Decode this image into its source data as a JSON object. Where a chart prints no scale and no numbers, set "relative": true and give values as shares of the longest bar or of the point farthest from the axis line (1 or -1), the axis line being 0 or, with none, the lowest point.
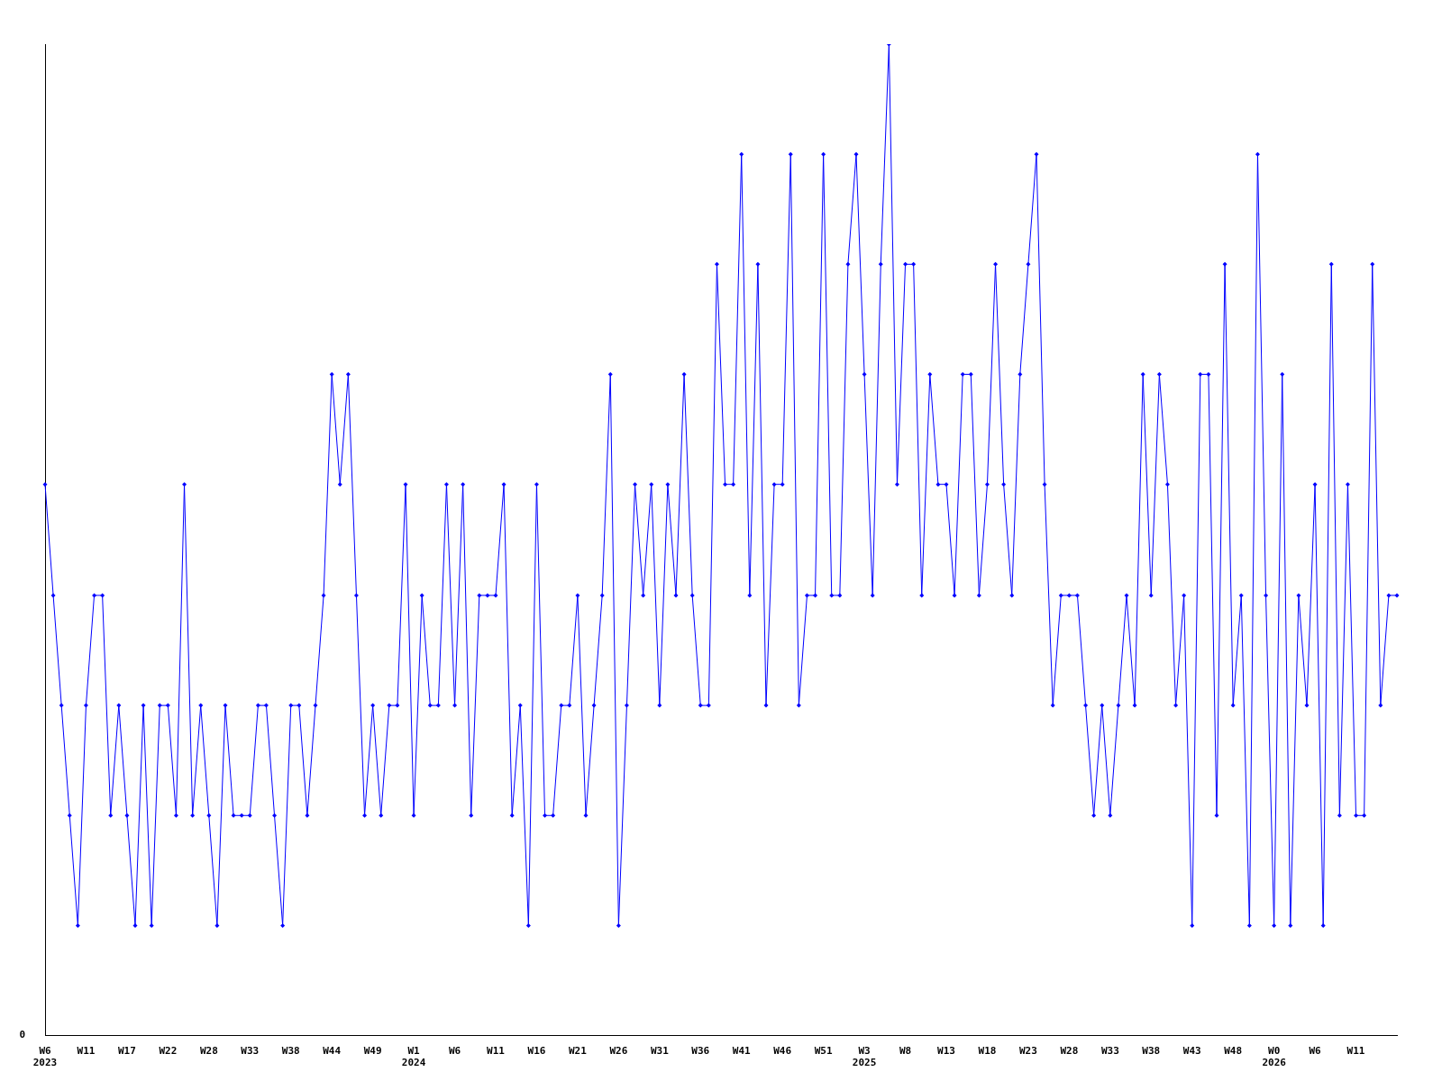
{
  "chart_data": {
    "type": "line",
    "relative": true,
    "grid": false,
    "legend": false,
    "marker": "diamond",
    "line_style": "solid",
    "annotations": [
      "0"
    ],
    "categories": [
      "W6\n2023",
      null,
      null,
      null,
      null,
      "W11",
      null,
      null,
      null,
      null,
      "W17",
      null,
      null,
      null,
      null,
      "W22",
      null,
      null,
      null,
      null,
      "W28",
      null,
      null,
      null,
      null,
      "W33",
      null,
      null,
      null,
      null,
      "W38",
      null,
      null,
      null,
      null,
      "W44",
      null,
      null,
      null,
      null,
      "W49",
      null,
      null,
      null,
      null,
      "W1\n2024",
      null,
      null,
      null,
      null,
      "W6",
      null,
      null,
      null,
      null,
      "W11",
      null,
      null,
      null,
      null,
      "W16",
      null,
      null,
      null,
      null,
      "W21",
      null,
      null,
      null,
      null,
      "W26",
      null,
      null,
      null,
      null,
      "W31",
      null,
      null,
      null,
      null,
      "W36",
      null,
      null,
      null,
      null,
      "W41",
      null,
      null,
      null,
      null,
      "W46",
      null,
      null,
      null,
      null,
      "W51",
      null,
      null,
      null,
      null,
      "W3\n2025",
      null,
      null,
      null,
      null,
      "W8",
      null,
      null,
      null,
      null,
      "W13",
      null,
      null,
      null,
      null,
      "W18",
      null,
      null,
      null,
      null,
      "W23",
      null,
      null,
      null,
      null,
      "W28",
      null,
      null,
      null,
      null,
      "W33",
      null,
      null,
      null,
      null,
      "W38",
      null,
      null,
      null,
      null,
      "W43",
      null,
      null,
      null,
      null,
      "W48",
      null,
      null,
      null,
      null,
      "W0\n2026",
      null,
      null,
      null,
      null,
      "W6",
      null,
      null,
      null,
      null,
      "W11",
      null,
      null,
      null,
      null,
      null
    ],
    "series": [
      {
        "color": "#0000ff",
        "values": [
          0.556,
          0.444,
          0.333,
          0.222,
          0.111,
          0.333,
          0.444,
          0.444,
          0.222,
          0.333,
          0.222,
          0.111,
          0.333,
          0.111,
          0.333,
          0.333,
          0.222,
          0.556,
          0.222,
          0.333,
          0.222,
          0.111,
          0.333,
          0.222,
          0.222,
          0.222,
          0.333,
          0.333,
          0.222,
          0.111,
          0.333,
          0.333,
          0.222,
          0.333,
          0.444,
          0.667,
          0.556,
          0.667,
          0.444,
          0.222,
          0.333,
          0.222,
          0.333,
          0.333,
          0.556,
          0.222,
          0.444,
          0.333,
          0.333,
          0.556,
          0.333,
          0.556,
          0.222,
          0.444,
          0.444,
          0.444,
          0.556,
          0.222,
          0.333,
          0.111,
          0.556,
          0.222,
          0.222,
          0.333,
          0.333,
          0.444,
          0.222,
          0.333,
          0.444,
          0.667,
          0.111,
          0.333,
          0.556,
          0.444,
          0.556,
          0.333,
          0.556,
          0.444,
          0.667,
          0.444,
          0.333,
          0.333,
          0.778,
          0.556,
          0.556,
          0.889,
          0.444,
          0.778,
          0.333,
          0.556,
          0.556,
          0.889,
          0.333,
          0.444,
          0.444,
          0.889,
          0.444,
          0.444,
          0.778,
          0.889,
          0.667,
          0.444,
          0.778,
          1,
          0.556,
          0.778,
          0.778,
          0.444,
          0.667,
          0.556,
          0.556,
          0.444,
          0.667,
          0.667,
          0.444,
          0.556,
          0.778,
          0.556,
          0.444,
          0.667,
          0.778,
          0.889,
          0.556,
          0.333,
          0.444,
          0.444,
          0.444,
          0.333,
          0.222,
          0.333,
          0.222,
          0.333,
          0.444,
          0.333,
          0.667,
          0.444,
          0.667,
          0.556,
          0.333,
          0.444,
          0.111,
          0.667,
          0.667,
          0.222,
          0.778,
          0.333,
          0.444,
          0.111,
          0.889,
          0.444,
          0.111,
          0.667,
          0.111,
          0.444,
          0.333,
          0.556,
          0.111,
          0.778,
          0.222,
          0.556,
          0.222,
          0.222,
          0.778,
          0.333,
          0.444,
          0.444
        ]
      }
    ]
  }
}
